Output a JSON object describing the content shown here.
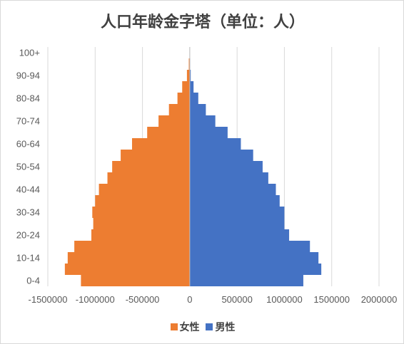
{
  "chart_data": {
    "type": "bar",
    "orientation": "horizontal",
    "stacked": true,
    "title": "人口年龄金字塔（单位：人）",
    "categories": [
      "0-4",
      "5-9",
      "10-14",
      "15-19",
      "20-24",
      "25-29",
      "30-34",
      "35-39",
      "40-44",
      "45-49",
      "50-54",
      "55-59",
      "60-64",
      "65-69",
      "70-74",
      "75-79",
      "80-84",
      "85-89",
      "90-94",
      "95-99",
      "100+"
    ],
    "y_tick_labels": [
      "0-4",
      "10-14",
      "20-24",
      "30-34",
      "40-44",
      "50-54",
      "60-64",
      "70-74",
      "80-84",
      "90-94",
      "100+"
    ],
    "series": [
      {
        "name": "女性",
        "color": "#ED7D31",
        "values": [
          -1150000,
          -1320000,
          -1290000,
          -1220000,
          -1040000,
          -1020000,
          -1030000,
          -1000000,
          -960000,
          -870000,
          -820000,
          -730000,
          -610000,
          -450000,
          -330000,
          -220000,
          -130000,
          -80000,
          -30000,
          -10000,
          -2000
        ]
      },
      {
        "name": "男性",
        "color": "#4472C4",
        "values": [
          1200000,
          1390000,
          1360000,
          1270000,
          1050000,
          1000000,
          1000000,
          950000,
          910000,
          830000,
          770000,
          670000,
          540000,
          400000,
          270000,
          170000,
          90000,
          40000,
          10000,
          3000,
          1000
        ]
      }
    ],
    "xlim": [
      -1500000,
      2000000
    ],
    "x_ticks": [
      -1500000,
      -1000000,
      -500000,
      0,
      500000,
      1000000,
      1500000,
      2000000
    ],
    "x_tick_labels": [
      "-1500000",
      "-1000000",
      "-500000",
      "0",
      "500000",
      "1000000",
      "1500000",
      "2000000"
    ],
    "grid": "vertical",
    "legend": "bottom"
  }
}
